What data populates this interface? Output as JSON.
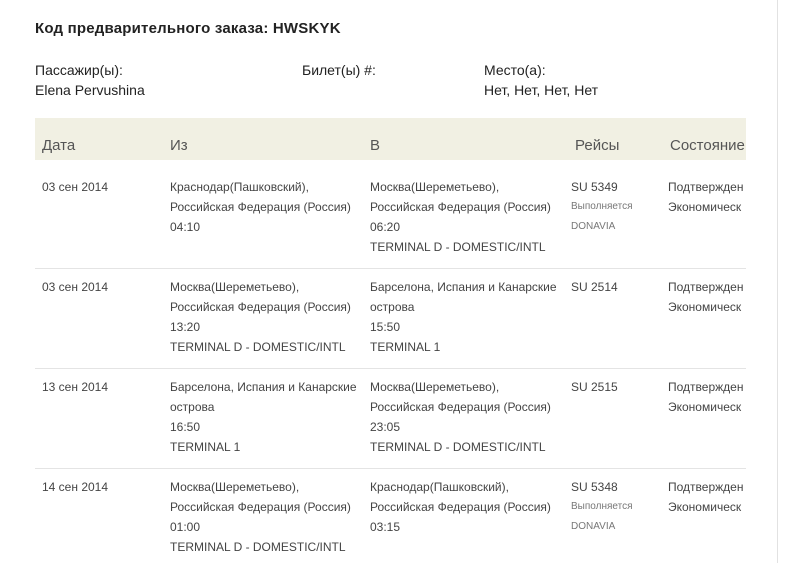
{
  "header": {
    "title": "Код предварительного заказа: HWSKYK",
    "passengers_label": "Пассажир(ы):",
    "tickets_label": "Билет(ы) #:",
    "seats_label": "Место(а):",
    "passenger": "Elena Pervushina",
    "seats": "Нет, Нет, Нет, Нет"
  },
  "table": {
    "columns": [
      "Дата",
      "Из",
      "В",
      "Рейсы",
      "Состояние"
    ],
    "rows": [
      {
        "date": "03 сен 2014",
        "from": [
          "Краснодар(Пашковский),",
          "Российская Федерация (Россия)",
          "04:10"
        ],
        "to": [
          "Москва(Шереметьево),",
          "Российская Федерация (Россия)",
          "06:20",
          "TERMINAL D - DOMESTIC/INTL"
        ],
        "flight": [
          "SU 5349",
          "Выполняется",
          "DONAVIA"
        ],
        "status": [
          "Подтвержден",
          "Экономическ"
        ]
      },
      {
        "date": "03 сен 2014",
        "from": [
          "Москва(Шереметьево),",
          "Российская Федерация (Россия)",
          "13:20",
          "TERMINAL D - DOMESTIC/INTL"
        ],
        "to": [
          "Барселона, Испания и Канарские",
          "острова",
          "15:50",
          "TERMINAL 1"
        ],
        "flight": [
          "SU 2514"
        ],
        "status": [
          "Подтвержден",
          "Экономическ"
        ]
      },
      {
        "date": "13 сен 2014",
        "from": [
          "Барселона, Испания и Канарские",
          "острова",
          "16:50",
          "TERMINAL 1"
        ],
        "to": [
          "Москва(Шереметьево),",
          "Российская Федерация (Россия)",
          "23:05",
          "TERMINAL D - DOMESTIC/INTL"
        ],
        "flight": [
          "SU 2515"
        ],
        "status": [
          "Подтвержден",
          "Экономическ"
        ]
      },
      {
        "date": "14 сен 2014",
        "from": [
          "Москва(Шереметьево),",
          "Российская Федерация (Россия)",
          "01:00",
          "TERMINAL D - DOMESTIC/INTL"
        ],
        "to": [
          "Краснодар(Пашковский),",
          "Российская Федерация (Россия)",
          "03:15"
        ],
        "flight": [
          "SU 5348",
          "Выполняется",
          "DONAVIA"
        ],
        "status": [
          "Подтвержден",
          "Экономическ"
        ]
      }
    ]
  }
}
